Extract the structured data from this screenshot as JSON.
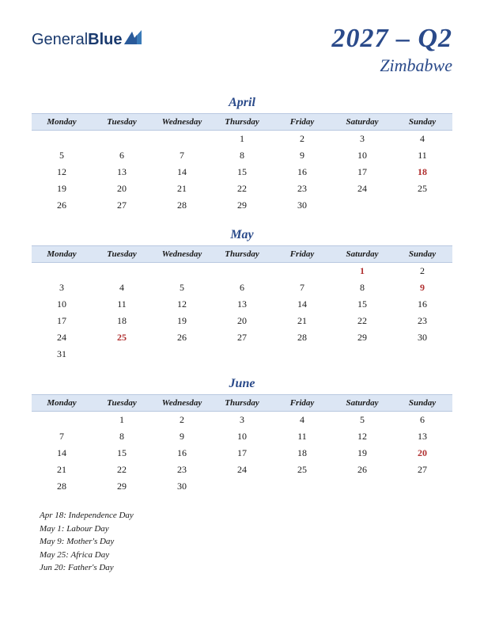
{
  "logo": {
    "part1": "General",
    "part2": "Blue"
  },
  "header": {
    "quarter": "2027 – Q2",
    "country": "Zimbabwe"
  },
  "colors": {
    "brand": "#2a4a8a",
    "header_bg": "#dce6f4",
    "holiday": "#b03030",
    "text": "#1a1a1a"
  },
  "day_headers": [
    "Monday",
    "Tuesday",
    "Wednesday",
    "Thursday",
    "Friday",
    "Saturday",
    "Sunday"
  ],
  "months": [
    {
      "name": "April",
      "weeks": [
        [
          "",
          "",
          "",
          "1",
          "2",
          "3",
          "4"
        ],
        [
          "5",
          "6",
          "7",
          "8",
          "9",
          "10",
          "11"
        ],
        [
          "12",
          "13",
          "14",
          "15",
          "16",
          "17",
          "18"
        ],
        [
          "19",
          "20",
          "21",
          "22",
          "23",
          "24",
          "25"
        ],
        [
          "26",
          "27",
          "28",
          "29",
          "30",
          "",
          ""
        ]
      ],
      "holidays": [
        "18"
      ]
    },
    {
      "name": "May",
      "weeks": [
        [
          "",
          "",
          "",
          "",
          "",
          "1",
          "2"
        ],
        [
          "3",
          "4",
          "5",
          "6",
          "7",
          "8",
          "9"
        ],
        [
          "10",
          "11",
          "12",
          "13",
          "14",
          "15",
          "16"
        ],
        [
          "17",
          "18",
          "19",
          "20",
          "21",
          "22",
          "23"
        ],
        [
          "24",
          "25",
          "26",
          "27",
          "28",
          "29",
          "30"
        ],
        [
          "31",
          "",
          "",
          "",
          "",
          "",
          ""
        ]
      ],
      "holidays": [
        "1",
        "9",
        "25"
      ]
    },
    {
      "name": "June",
      "weeks": [
        [
          "",
          "1",
          "2",
          "3",
          "4",
          "5",
          "6"
        ],
        [
          "7",
          "8",
          "9",
          "10",
          "11",
          "12",
          "13"
        ],
        [
          "14",
          "15",
          "16",
          "17",
          "18",
          "19",
          "20"
        ],
        [
          "21",
          "22",
          "23",
          "24",
          "25",
          "26",
          "27"
        ],
        [
          "28",
          "29",
          "30",
          "",
          "",
          "",
          ""
        ]
      ],
      "holidays": [
        "20"
      ]
    }
  ],
  "holiday_list": [
    "Apr 18: Independence Day",
    "May 1: Labour Day",
    "May 9: Mother's Day",
    "May 25: Africa Day",
    "Jun 20: Father's Day"
  ]
}
